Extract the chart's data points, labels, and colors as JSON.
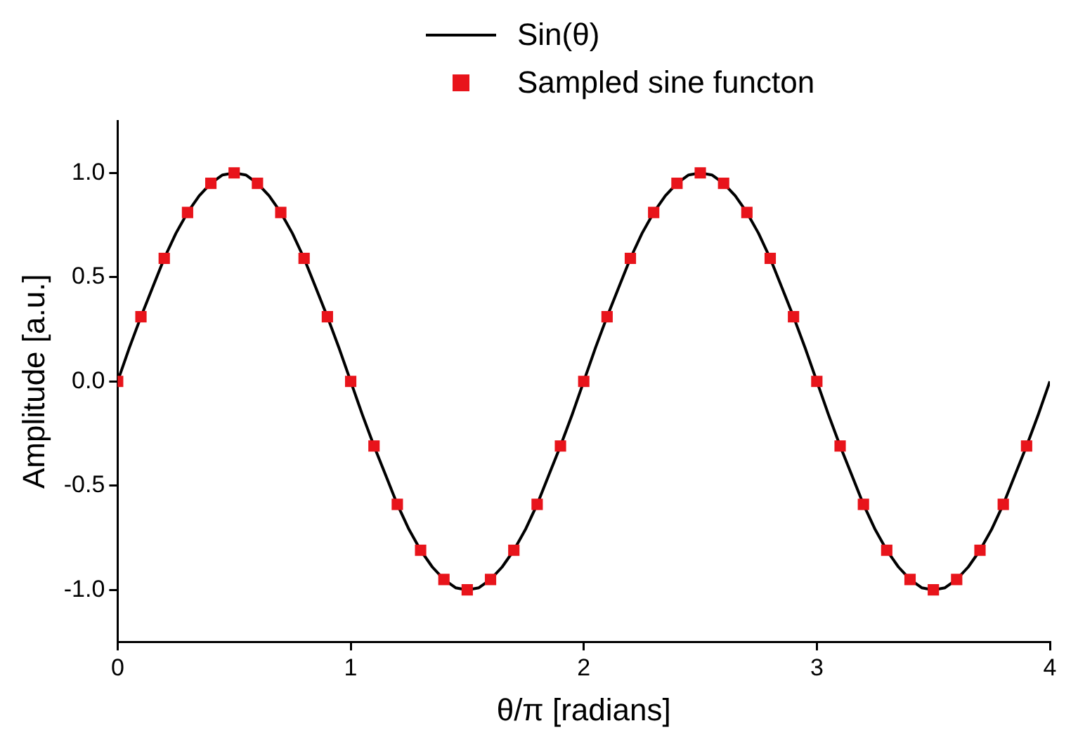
{
  "chart_data": {
    "type": "line",
    "xlabel": "θ/π [radians]",
    "ylabel": "Amplitude [a.u.]",
    "xlim": [
      0,
      4
    ],
    "xticks": [
      0,
      1,
      2,
      3,
      4
    ],
    "ylim": [
      -1.25,
      1.25
    ],
    "yticks": [
      {
        "value": -1,
        "label": "-1.0"
      },
      {
        "value": -0.5,
        "label": "-0.5"
      },
      {
        "value": 0,
        "label": "0.0"
      },
      {
        "value": 0.5,
        "label": "0.5"
      },
      {
        "value": 1,
        "label": "1.0"
      }
    ],
    "grid": false,
    "legend": "top",
    "series": [
      {
        "name": "Sin(θ)",
        "color": "#000000",
        "x": [
          0,
          0.05,
          0.1,
          0.15,
          0.2,
          0.25,
          0.3,
          0.35,
          0.4,
          0.45,
          0.5,
          0.55,
          0.6,
          0.65,
          0.7,
          0.75,
          0.8,
          0.85,
          0.9,
          0.95,
          1,
          1.05,
          1.1,
          1.15,
          1.2,
          1.25,
          1.3,
          1.35,
          1.4,
          1.45,
          1.5,
          1.55,
          1.6,
          1.65,
          1.7,
          1.75,
          1.8,
          1.85,
          1.9,
          1.95,
          2,
          2.05,
          2.1,
          2.15,
          2.2,
          2.25,
          2.3,
          2.35,
          2.4,
          2.45,
          2.5,
          2.55,
          2.6,
          2.65,
          2.7,
          2.75,
          2.8,
          2.85,
          2.9,
          2.95,
          3,
          3.05,
          3.1,
          3.15,
          3.2,
          3.25,
          3.3,
          3.35,
          3.4,
          3.45,
          3.5,
          3.55,
          3.6,
          3.65,
          3.7,
          3.75,
          3.8,
          3.85,
          3.9,
          3.95,
          4
        ],
        "values": [
          0,
          0.16,
          0.31,
          0.45,
          0.59,
          0.71,
          0.81,
          0.89,
          0.95,
          0.99,
          1,
          0.99,
          0.95,
          0.89,
          0.81,
          0.71,
          0.59,
          0.45,
          0.31,
          0.16,
          0,
          -0.16,
          -0.31,
          -0.45,
          -0.59,
          -0.71,
          -0.81,
          -0.89,
          -0.95,
          -0.99,
          -1,
          -0.99,
          -0.95,
          -0.89,
          -0.81,
          -0.71,
          -0.59,
          -0.45,
          -0.31,
          -0.16,
          0,
          0.16,
          0.31,
          0.45,
          0.59,
          0.71,
          0.81,
          0.89,
          0.95,
          0.99,
          1,
          0.99,
          0.95,
          0.89,
          0.81,
          0.71,
          0.59,
          0.45,
          0.31,
          0.16,
          0,
          -0.16,
          -0.31,
          -0.45,
          -0.59,
          -0.71,
          -0.81,
          -0.89,
          -0.95,
          -0.99,
          -1,
          -0.99,
          -0.95,
          -0.89,
          -0.81,
          -0.71,
          -0.59,
          -0.45,
          -0.31,
          -0.16,
          0
        ]
      },
      {
        "name": "Sampled sine functon",
        "type": "scatter",
        "marker": "square",
        "color": "#e8141b",
        "x": [
          0,
          0.1,
          0.2,
          0.3,
          0.4,
          0.5,
          0.6,
          0.7,
          0.8,
          0.9,
          1,
          1.1,
          1.2,
          1.3,
          1.4,
          1.5,
          1.6,
          1.7,
          1.8,
          1.9,
          2,
          2.1,
          2.2,
          2.3,
          2.4,
          2.5,
          2.6,
          2.7,
          2.8,
          2.9,
          3,
          3.1,
          3.2,
          3.3,
          3.4,
          3.5,
          3.6,
          3.7,
          3.8,
          3.9
        ],
        "values": [
          0,
          0.31,
          0.59,
          0.81,
          0.95,
          1,
          0.95,
          0.81,
          0.59,
          0.31,
          0,
          -0.31,
          -0.59,
          -0.81,
          -0.95,
          -1,
          -0.95,
          -0.81,
          -0.59,
          -0.31,
          0,
          0.31,
          0.59,
          0.81,
          0.95,
          1,
          0.95,
          0.81,
          0.59,
          0.31,
          0,
          -0.31,
          -0.59,
          -0.81,
          -0.95,
          -1,
          -0.95,
          -0.81,
          -0.59,
          -0.31
        ]
      }
    ]
  }
}
